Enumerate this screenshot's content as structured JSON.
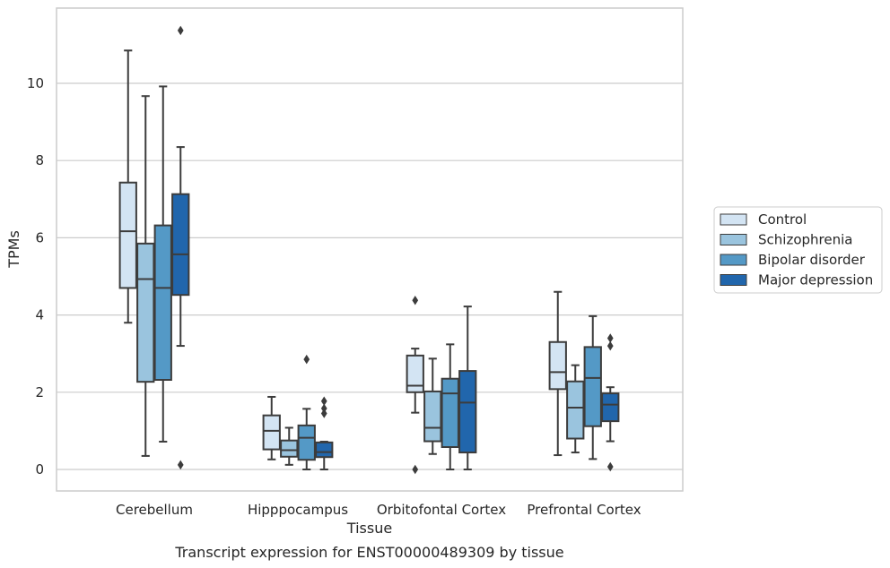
{
  "chart_data": {
    "type": "box",
    "title": "",
    "caption": "Transcript expression for ENST00000489309 by tissue",
    "xlabel": "Tissue",
    "ylabel": "TPMs",
    "ylim": [
      -0.55,
      11.85
    ],
    "yticks": [
      0,
      2,
      4,
      6,
      8,
      10
    ],
    "grid": "horizontal",
    "legend_position": "right",
    "categories": [
      "Cerebellum",
      "Hipppocampus",
      "Orbitofontal Cortex",
      "Prefrontal Cortex"
    ],
    "series": [
      {
        "name": "Control",
        "color": "#d3e4f3",
        "boxes": [
          {
            "whislo": 3.8,
            "q1": 4.7,
            "med": 6.17,
            "q3": 7.43,
            "whishi": 10.85,
            "fliers": []
          },
          {
            "whislo": 0.26,
            "q1": 0.52,
            "med": 1.0,
            "q3": 1.4,
            "whishi": 1.88,
            "fliers": []
          },
          {
            "whislo": 1.47,
            "q1": 2.0,
            "med": 2.17,
            "q3": 2.95,
            "whishi": 3.13,
            "fliers": [
              4.38,
              0.0
            ]
          },
          {
            "whislo": 0.37,
            "q1": 2.08,
            "med": 2.52,
            "q3": 3.3,
            "whishi": 4.6,
            "fliers": []
          }
        ]
      },
      {
        "name": "Schizophrenia",
        "color": "#9ac4de",
        "boxes": [
          {
            "whislo": 0.35,
            "q1": 2.27,
            "med": 4.93,
            "q3": 5.85,
            "whishi": 9.67,
            "fliers": []
          },
          {
            "whislo": 0.12,
            "q1": 0.33,
            "med": 0.5,
            "q3": 0.75,
            "whishi": 1.08,
            "fliers": []
          },
          {
            "whislo": 0.4,
            "q1": 0.73,
            "med": 1.08,
            "q3": 2.02,
            "whishi": 2.87,
            "fliers": []
          },
          {
            "whislo": 0.44,
            "q1": 0.8,
            "med": 1.6,
            "q3": 2.28,
            "whishi": 2.7,
            "fliers": []
          }
        ]
      },
      {
        "name": "Bipolar disorder",
        "color": "#5499c6",
        "boxes": [
          {
            "whislo": 0.72,
            "q1": 2.32,
            "med": 4.7,
            "q3": 6.32,
            "whishi": 9.92,
            "fliers": []
          },
          {
            "whislo": 0.0,
            "q1": 0.25,
            "med": 0.82,
            "q3": 1.14,
            "whishi": 1.57,
            "fliers": [
              2.85
            ]
          },
          {
            "whislo": 0.0,
            "q1": 0.58,
            "med": 1.97,
            "q3": 2.35,
            "whishi": 3.24,
            "fliers": []
          },
          {
            "whislo": 0.27,
            "q1": 1.12,
            "med": 2.37,
            "q3": 3.17,
            "whishi": 3.97,
            "fliers": []
          }
        ]
      },
      {
        "name": "Major depression",
        "color": "#2166ac",
        "boxes": [
          {
            "whislo": 3.2,
            "q1": 4.52,
            "med": 5.57,
            "q3": 7.13,
            "whishi": 8.35,
            "fliers": [
              11.37,
              0.12
            ]
          },
          {
            "whislo": 0.0,
            "q1": 0.32,
            "med": 0.45,
            "q3": 0.7,
            "whishi": 0.72,
            "fliers": [
              1.45,
              1.58,
              1.77
            ]
          },
          {
            "whislo": 0.0,
            "q1": 0.44,
            "med": 1.73,
            "q3": 2.55,
            "whishi": 4.22,
            "fliers": []
          },
          {
            "whislo": 0.73,
            "q1": 1.25,
            "med": 1.68,
            "q3": 1.97,
            "whishi": 2.13,
            "fliers": [
              3.2,
              3.4,
              0.07
            ]
          }
        ]
      }
    ]
  }
}
